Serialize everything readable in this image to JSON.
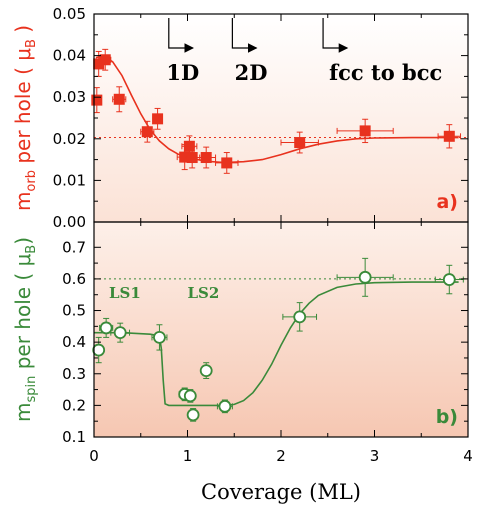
{
  "x_axis": {
    "label": "Coverage (ML)",
    "ticks": [
      0,
      1,
      2,
      3,
      4
    ],
    "range": [
      0,
      4
    ]
  },
  "chart_data": [
    {
      "panel": "a)",
      "type": "scatter",
      "ylabel_main": "m",
      "ylabel_sub": "orb",
      "ylabel_tail": " per hole ( μ",
      "ylabel_unit_sub": "B",
      "ylabel_end": " )",
      "ylim": [
        0,
        0.05
      ],
      "yticks": [
        "0.00",
        "0.01",
        "0.02",
        "0.03",
        "0.04",
        "0.05"
      ],
      "ytick_values": [
        0,
        0.01,
        0.02,
        0.03,
        0.04,
        0.05
      ],
      "color": "#e8321e",
      "marker": "filled-square",
      "reference_line": 0.0203,
      "points": [
        {
          "x": 0.03,
          "y": 0.0293,
          "xerr": 0.04,
          "yerr": 0.003
        },
        {
          "x": 0.05,
          "y": 0.038,
          "xerr": 0.05,
          "yerr": 0.003
        },
        {
          "x": 0.12,
          "y": 0.039,
          "xerr": 0.06,
          "yerr": 0.0025
        },
        {
          "x": 0.27,
          "y": 0.0295,
          "xerr": 0.07,
          "yerr": 0.003
        },
        {
          "x": 0.57,
          "y": 0.0217,
          "xerr": 0.07,
          "yerr": 0.0025
        },
        {
          "x": 0.68,
          "y": 0.0248,
          "xerr": 0.05,
          "yerr": 0.0025
        },
        {
          "x": 0.97,
          "y": 0.0156,
          "xerr": 0.08,
          "yerr": 0.003
        },
        {
          "x": 1.02,
          "y": 0.0182,
          "xerr": 0.08,
          "yerr": 0.0025
        },
        {
          "x": 1.05,
          "y": 0.0155,
          "xerr": 0.08,
          "yerr": 0.0025
        },
        {
          "x": 1.2,
          "y": 0.0155,
          "xerr": 0.1,
          "yerr": 0.0025
        },
        {
          "x": 1.42,
          "y": 0.0142,
          "xerr": 0.12,
          "yerr": 0.0025
        },
        {
          "x": 2.2,
          "y": 0.0191,
          "xerr": 0.2,
          "yerr": 0.0025
        },
        {
          "x": 2.9,
          "y": 0.0219,
          "xerr": 0.3,
          "yerr": 0.0028
        },
        {
          "x": 3.8,
          "y": 0.0206,
          "xerr": 0.12,
          "yerr": 0.0028
        }
      ],
      "fit_curve": [
        [
          0.02,
          0.0395
        ],
        [
          0.1,
          0.04
        ],
        [
          0.2,
          0.0385
        ],
        [
          0.3,
          0.0352
        ],
        [
          0.4,
          0.0305
        ],
        [
          0.5,
          0.026
        ],
        [
          0.6,
          0.0222
        ],
        [
          0.7,
          0.0195
        ],
        [
          0.8,
          0.0176
        ],
        [
          0.9,
          0.0163
        ],
        [
          1.0,
          0.0155
        ],
        [
          1.2,
          0.0146
        ],
        [
          1.4,
          0.0143
        ],
        [
          1.6,
          0.0145
        ],
        [
          1.8,
          0.015
        ],
        [
          2.0,
          0.0162
        ],
        [
          2.2,
          0.0176
        ],
        [
          2.4,
          0.0187
        ],
        [
          2.6,
          0.0195
        ],
        [
          2.8,
          0.02
        ],
        [
          3.0,
          0.0202
        ],
        [
          3.4,
          0.0203
        ],
        [
          3.9,
          0.0203
        ]
      ],
      "annotations": [
        {
          "text": "1D",
          "arrow_x": 0.8,
          "text_x": 0.95
        },
        {
          "text": "2D",
          "arrow_x": 1.48,
          "text_x": 1.68
        },
        {
          "text": "fcc to bcc",
          "arrow_x": 2.45,
          "text_x": 3.12
        }
      ]
    },
    {
      "panel": "b)",
      "type": "scatter",
      "ylabel_main": "m",
      "ylabel_sub": "spin",
      "ylabel_tail": " per hole ( μ",
      "ylabel_unit_sub": "B",
      "ylabel_end": ")",
      "ylim": [
        0.1,
        0.78
      ],
      "yticks": [
        "0.1",
        "0.2",
        "0.3",
        "0.4",
        "0.5",
        "0.6",
        "0.7"
      ],
      "ytick_values": [
        0.1,
        0.2,
        0.3,
        0.4,
        0.5,
        0.6,
        0.7
      ],
      "color": "#3a8a3a",
      "marker": "open-circle",
      "reference_line": 0.6,
      "points": [
        {
          "x": 0.05,
          "y": 0.375,
          "xerr": 0.05,
          "yerr": 0.04
        },
        {
          "x": 0.13,
          "y": 0.445,
          "xerr": 0.07,
          "yerr": 0.03
        },
        {
          "x": 0.28,
          "y": 0.43,
          "xerr": 0.1,
          "yerr": 0.03
        },
        {
          "x": 0.7,
          "y": 0.415,
          "xerr": 0.08,
          "yerr": 0.04
        },
        {
          "x": 0.97,
          "y": 0.235,
          "xerr": 0.06,
          "yerr": 0.02
        },
        {
          "x": 1.03,
          "y": 0.23,
          "xerr": 0.05,
          "yerr": 0.02
        },
        {
          "x": 1.06,
          "y": 0.17,
          "xerr": 0.04,
          "yerr": 0.02
        },
        {
          "x": 1.2,
          "y": 0.31,
          "xerr": 0.05,
          "yerr": 0.025
        },
        {
          "x": 1.4,
          "y": 0.197,
          "xerr": 0.08,
          "yerr": 0.02
        },
        {
          "x": 2.2,
          "y": 0.48,
          "xerr": 0.18,
          "yerr": 0.045
        },
        {
          "x": 2.9,
          "y": 0.605,
          "xerr": 0.3,
          "yerr": 0.06
        },
        {
          "x": 3.8,
          "y": 0.598,
          "xerr": 0.15,
          "yerr": 0.045
        }
      ],
      "fit_curve": [
        [
          0.0,
          0.43
        ],
        [
          0.3,
          0.43
        ],
        [
          0.6,
          0.425
        ],
        [
          0.7,
          0.42
        ],
        [
          0.72,
          0.38
        ],
        [
          0.74,
          0.28
        ],
        [
          0.76,
          0.205
        ],
        [
          0.8,
          0.2
        ],
        [
          1.0,
          0.2
        ],
        [
          1.2,
          0.2
        ],
        [
          1.4,
          0.2
        ],
        [
          1.5,
          0.203
        ],
        [
          1.6,
          0.215
        ],
        [
          1.7,
          0.24
        ],
        [
          1.8,
          0.28
        ],
        [
          1.9,
          0.33
        ],
        [
          2.0,
          0.39
        ],
        [
          2.1,
          0.445
        ],
        [
          2.2,
          0.49
        ],
        [
          2.3,
          0.523
        ],
        [
          2.4,
          0.548
        ],
        [
          2.6,
          0.573
        ],
        [
          2.8,
          0.584
        ],
        [
          3.0,
          0.588
        ],
        [
          3.4,
          0.59
        ],
        [
          3.9,
          0.59
        ]
      ],
      "annotations": [
        {
          "text": "LS1",
          "text_x": 0.33,
          "y": 0.54
        },
        {
          "text": "LS2",
          "text_x": 1.17,
          "y": 0.54
        }
      ]
    }
  ]
}
